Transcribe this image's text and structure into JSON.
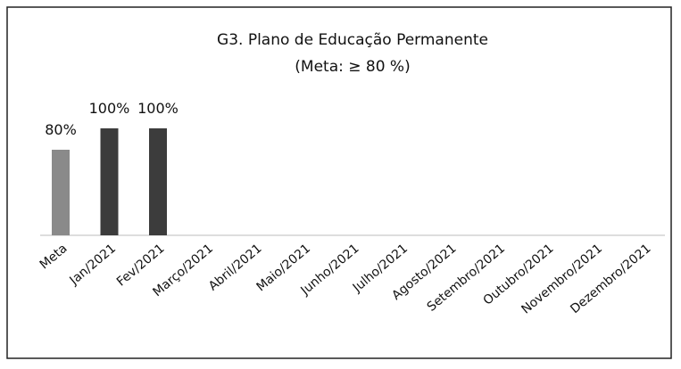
{
  "chart_data": {
    "type": "bar",
    "title": "G3. Plano de Educação Permanente",
    "subtitle": "(Meta: ≥ 80 %)",
    "categories": [
      "Meta",
      "Jan/2021",
      "Fev/2021",
      "Março/2021",
      "Abril/2021",
      "Maio/2021",
      "Junho/2021",
      "Julho/2021",
      "Agosto/2021",
      "Setembro/2021",
      "Outubro/2021",
      "Novembro/2021",
      "Dezembro/2021"
    ],
    "values": [
      80,
      100,
      100,
      null,
      null,
      null,
      null,
      null,
      null,
      null,
      null,
      null,
      null
    ],
    "value_labels": [
      "80%",
      "100%",
      "100%",
      null,
      null,
      null,
      null,
      null,
      null,
      null,
      null,
      null,
      null
    ],
    "colors": [
      "#8a8a8a",
      "#3c3c3c",
      "#3c3c3c",
      null,
      null,
      null,
      null,
      null,
      null,
      null,
      null,
      null,
      null
    ]
  }
}
